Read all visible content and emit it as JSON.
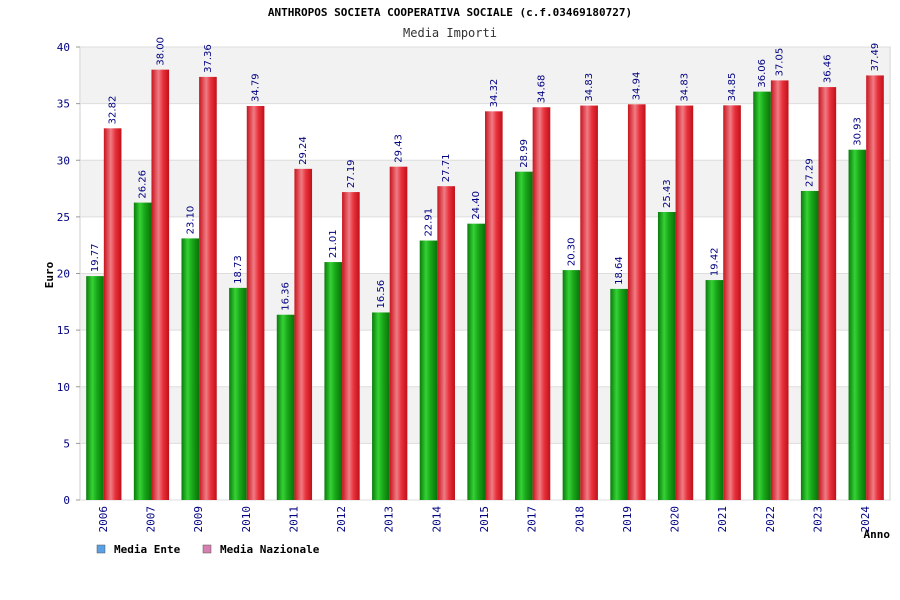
{
  "chart_data": {
    "type": "bar",
    "title": "ANTHROPOS SOCIETA COOPERATIVA SOCIALE (c.f.03469180727)",
    "subtitle": "Media Importi",
    "xlabel": "Anno",
    "ylabel": "Euro",
    "ylim": [
      0,
      40
    ],
    "yticks": [
      0,
      5,
      10,
      15,
      20,
      25,
      30,
      35,
      40
    ],
    "categories": [
      "2006",
      "2007",
      "2009",
      "2010",
      "2011",
      "2012",
      "2013",
      "2014",
      "2015",
      "2017",
      "2018",
      "2019",
      "2020",
      "2021",
      "2022",
      "2023",
      "2024"
    ],
    "series": [
      {
        "name": "Media Ente",
        "color": "#1aa81a",
        "legend_color": "#5aa0e6",
        "values": [
          19.77,
          26.26,
          23.1,
          18.73,
          16.36,
          21.01,
          16.56,
          22.91,
          24.4,
          28.99,
          20.3,
          18.64,
          25.43,
          19.42,
          36.06,
          27.29,
          30.93
        ],
        "labels": [
          "19.77",
          "26.26",
          "23.10",
          "18.73",
          "16.36",
          "21.01",
          "16.56",
          "22.91",
          "24.40",
          "28.99",
          "20.30",
          "18.64",
          "25.43",
          "19.42",
          "36.06",
          "27.29",
          "30.93"
        ]
      },
      {
        "name": "Media Nazionale",
        "color": "#e8323c",
        "legend_color": "#d77fb0",
        "values": [
          32.82,
          38.0,
          37.36,
          34.79,
          29.24,
          27.19,
          29.43,
          27.71,
          34.32,
          34.68,
          34.83,
          34.94,
          34.83,
          34.85,
          37.05,
          36.46,
          37.49
        ],
        "labels": [
          "32.82",
          "38.00",
          "37.36",
          "34.79",
          "29.24",
          "27.19",
          "29.43",
          "27.71",
          "34.32",
          "34.68",
          "34.83",
          "34.94",
          "34.83",
          "34.85",
          "37.05",
          "36.46",
          "37.49"
        ]
      }
    ],
    "grid": true,
    "legend_position": "bottom-left"
  }
}
